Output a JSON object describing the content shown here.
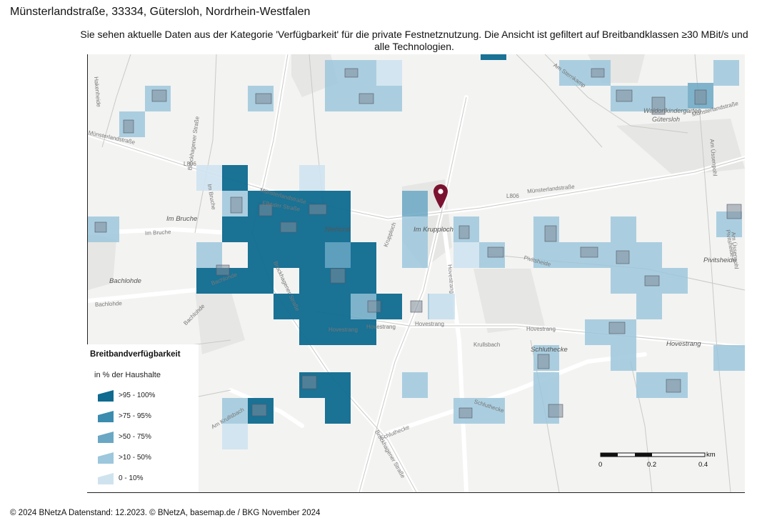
{
  "header": {
    "title": "Münsterlandstraße, 33334, Gütersloh, Nordrhein-Westfalen",
    "subtitle": "Sie sehen aktuelle Daten aus der Kategorie 'Verfügbarkeit' für die private Festnetznutzung. Die Ansicht ist gefiltert auf Breitbandklassen ≥30 MBit/s und alle Technologien."
  },
  "map": {
    "labels": {
      "muensterlandstrasse_w": "Münsterlandstraße",
      "muensterlandstrasse_e": "Münsterlandstraße",
      "muensterlandstrasse_ne": "Münsterlandstraße",
      "muensterlandstrasse_c": "Münsterlandstraße",
      "l806_w": "L806",
      "l806_e": "L806",
      "im_bruche": "Im Bruche",
      "im_bruche_road": "Im Bruche",
      "im_bruche_road2": "Im Bruche",
      "bachlohde": "Bachlohde",
      "bachlohde_road": "Bachlohde",
      "bachlohde_road2": "Bachlohde",
      "bachlohde_road3": "Bachlohde",
      "niehorst": "Niehorst",
      "im_krupploch": "Im Krupploch",
      "krupploch": "Krupploch",
      "hovestrang_1": "Hovestrang",
      "hovestrang_2": "Hovestrang",
      "hovestrang_3": "Hovestrang",
      "hovestrang_4": "Hovestrang",
      "hovestrang_5": "Hovestrang",
      "hovestrang_v": "Hovestrang",
      "schluthecke": "Schluthecke",
      "schluthecke_1": "Schluthecke",
      "schluthecke_2": "Schluthecke",
      "pivitsheide": "Pivitsheide",
      "pivitsheide_road": "Pivitsheide",
      "pivitsheide_road2": "Pivitsheide",
      "brockhagener_1": "Brockhagener Straße",
      "brockhagener_2": "Brockhagener Straße",
      "brockhagener_3": "Brockhagener Straße",
      "am_uessenpohl": "Am Üssenpohl",
      "am_uessenpohl2": "Am Üssenpohl",
      "am_sternkamp": "Am Sternkamp",
      "waldorf": "Waldorfkindergarten",
      "waldorf2": "Gütersloh",
      "hakenheide": "Hakenheide",
      "kruellsbach": "Krullsbach",
      "am_kruellsbach": "Am Krullsbach",
      "elbtaler": "Elbtaler Straße"
    }
  },
  "legend": {
    "title": "Breitbandverfügbarkeit",
    "subtitle": "in % der Haushalte",
    "items": [
      {
        "label": ">95 - 100%",
        "color": "#0e6a8f"
      },
      {
        "label": ">75 - 95%",
        "color": "#3b8cae"
      },
      {
        "label": ">50 - 75%",
        "color": "#6aa7c4"
      },
      {
        "label": ">10 - 50%",
        "color": "#9cc7dc"
      },
      {
        "label": "0 - 10%",
        "color": "#cfe3ef"
      }
    ]
  },
  "scale": {
    "unit": "km",
    "ticks": [
      "0",
      "0.2",
      "0.4"
    ]
  },
  "footer": {
    "text": "© 2024 BNetzA   Datenstand: 12.2023. © BNetzA, basemap.de / BKG November 2024"
  },
  "colors": {
    "marker": "#7b1230",
    "class_95_100": "#0e6a8f",
    "class_10_50": "#9cc7dc",
    "class_0_10": "#cfe3ef"
  }
}
